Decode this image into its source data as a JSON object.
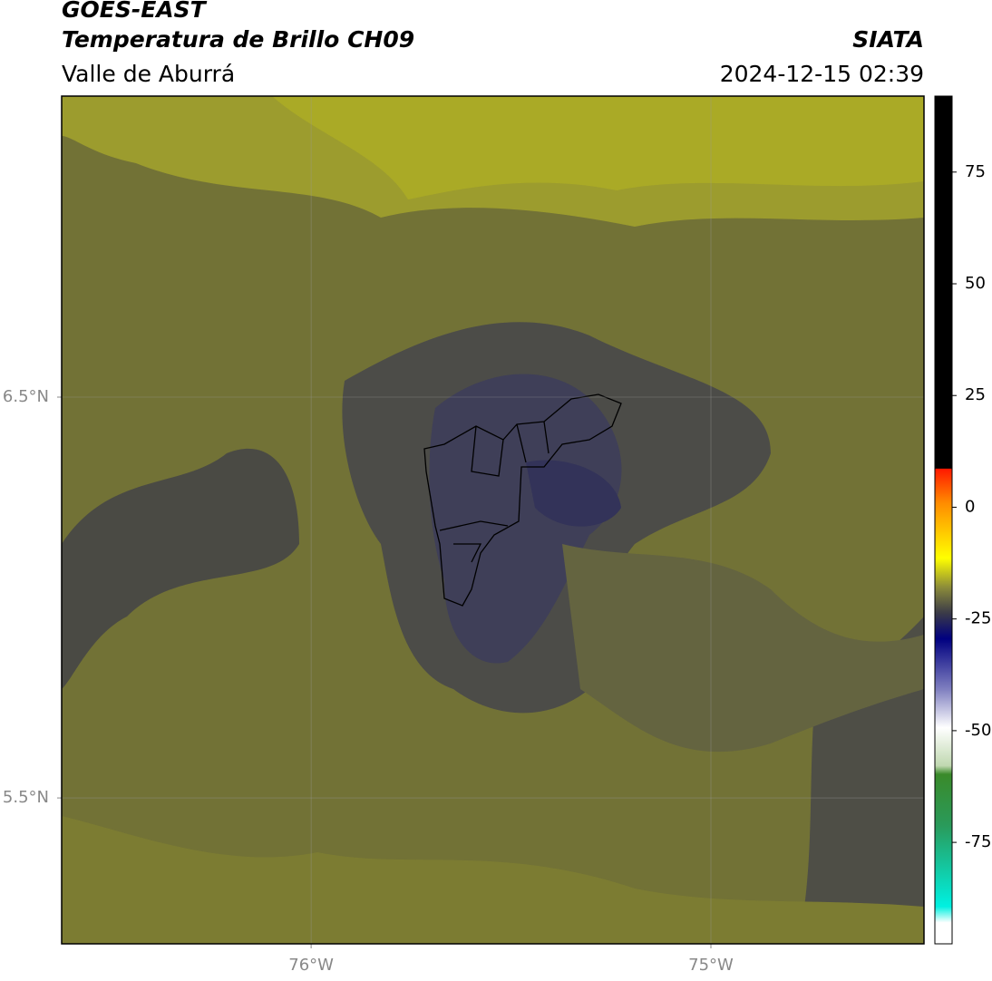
{
  "header": {
    "title": "GOES-EAST",
    "subtitle": "Temperatura de Brillo CH09",
    "region": "Valle de Aburrá",
    "source": "SIATA",
    "timestamp": "2024-12-15 02:39"
  },
  "map": {
    "xlim": [
      -76.624,
      -74.467
    ],
    "ylim": [
      5.136,
      7.251
    ],
    "xticks": [
      {
        "value": -76,
        "label": "76°W"
      },
      {
        "value": -75,
        "label": "75°W"
      }
    ],
    "yticks": [
      {
        "value": 6.5,
        "label": "6.5°N"
      },
      {
        "value": 5.5,
        "label": "5.5°N"
      }
    ],
    "grid": true
  },
  "colorbar": {
    "lim": [
      -97.7,
      92
    ],
    "ticks": [
      75,
      50,
      25,
      0,
      -25,
      -50,
      -75
    ]
  }
}
